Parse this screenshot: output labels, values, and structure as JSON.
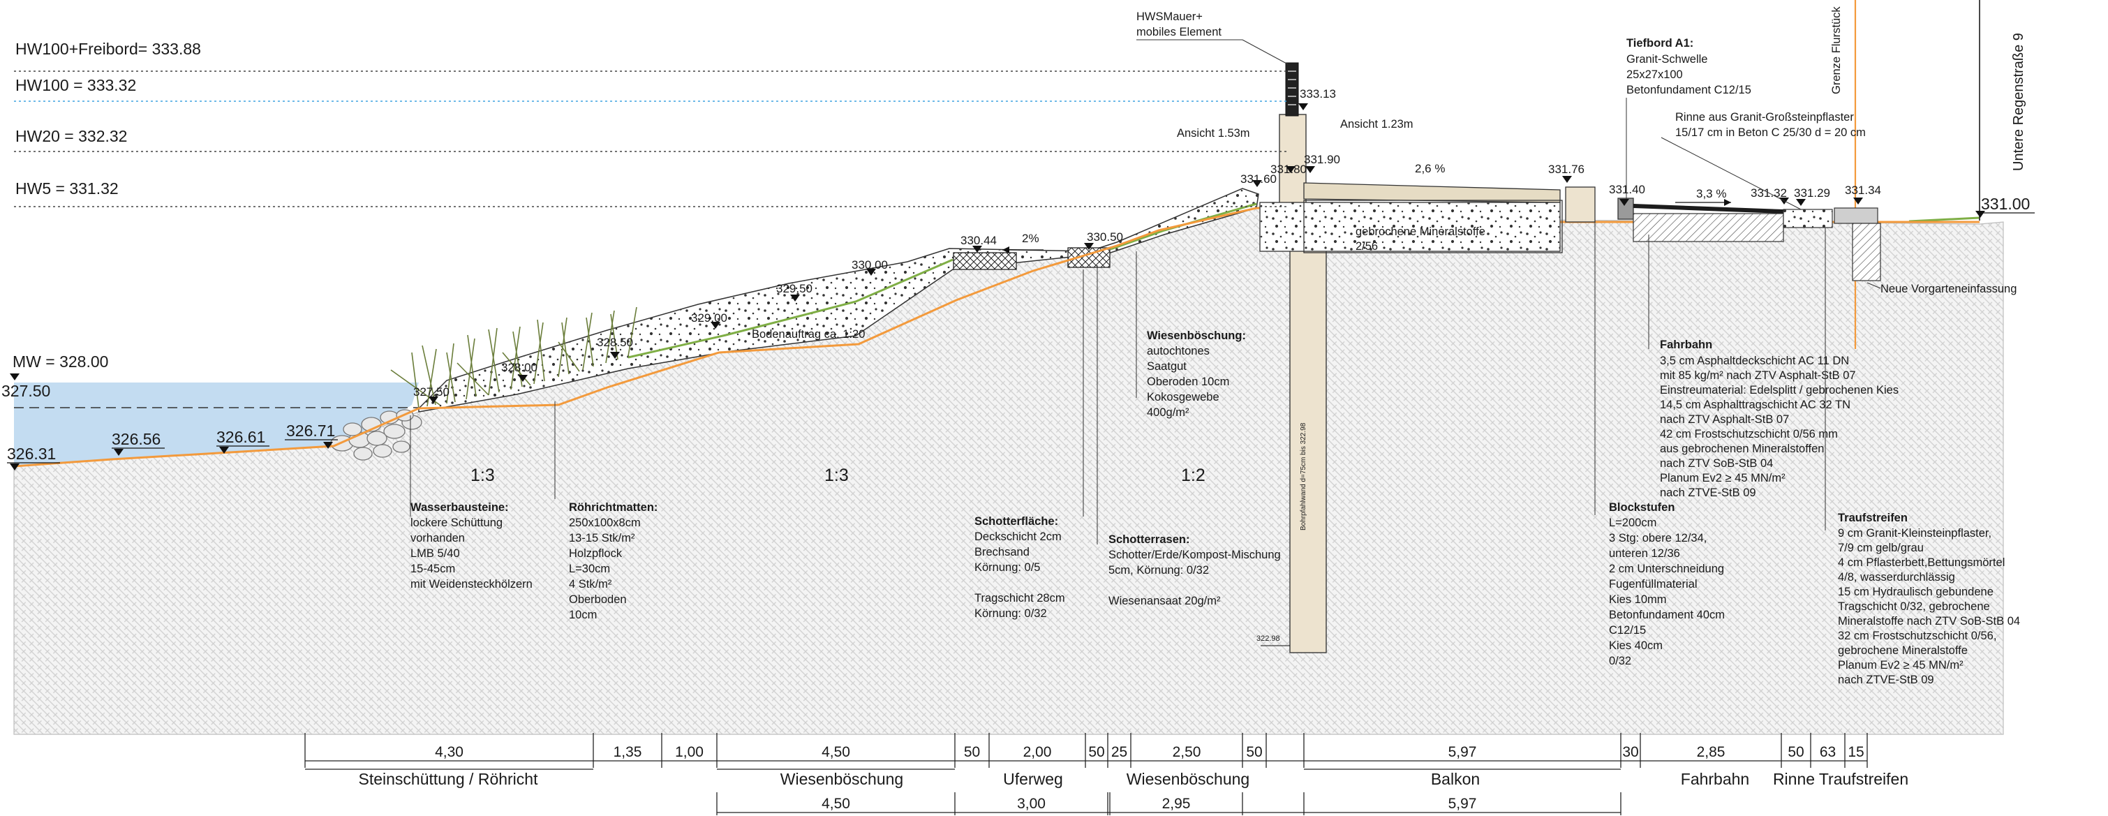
{
  "levels": {
    "hw100_freibord": "HW100+Freibord= 333.88",
    "hw100": "HW100 = 333.32",
    "hw20": "HW20 = 332.32",
    "hw5": "HW5 = 331.32",
    "mw": "MW = 328.00"
  },
  "elevations": {
    "e32750_left": "327.50",
    "e32750": "327.50",
    "e32631": "326.31",
    "e32656": "326.56",
    "e32661": "326.61",
    "e32671": "326.71",
    "e32800": "328.00",
    "e32850": "328.50",
    "e32900": "329.00",
    "e32950": "329.50",
    "e33000": "330.00",
    "e33044": "330.44",
    "e33050": "330.50",
    "e33160": "331.60",
    "e33180": "331.80",
    "e33190": "331.90",
    "e33313": "333.13",
    "e33176": "331.76",
    "e33140": "331.40",
    "e33132": "331.32",
    "e33129": "331.29",
    "e33134": "331.34",
    "e33100": "331.00",
    "e32298": "322.98"
  },
  "slopes": {
    "s1": "1:3",
    "s2": "1:3",
    "s3": "1:2",
    "p2": "2%",
    "p26": "2,6 %",
    "p33": "3,3 %"
  },
  "labels": {
    "hws_line1": "HWSMauer+",
    "hws_line2": "mobiles Element",
    "ansicht_left": "Ansicht 1.53m",
    "ansicht_right": "Ansicht 1.23m",
    "bodenauftrag": "Bodenauftrag ca. 1:20",
    "gebrochene": "gebrochene Mineralstoffe",
    "gebrochene_size": "2/56",
    "pile": "Bohrpfahlwand d=75cm bis 322.98",
    "street": "Untere Regenstraße 9",
    "grenze": "Grenze Flurstück",
    "vorgarten": "Neue Vorgarteneinfassung",
    "tiefbord_title": "Tiefbord A1:",
    "tiefbord_lines": [
      "Granit-Schwelle",
      "25x27x100",
      "Betonfundament C12/15"
    ],
    "rinne_lines": [
      "Rinne aus Granit-Großsteinpflaster",
      "15/17 cm in Beton C 25/30 d = 20 cm"
    ],
    "wasser_title": "Wasserbausteine:",
    "wasser_lines": [
      "lockere Schüttung",
      "vorhanden",
      "LMB 5/40",
      "15-45cm",
      "mit Weidensteckhölzern"
    ],
    "roehricht_title": "Röhrichtmatten:",
    "roehricht_lines": [
      "250x100x8cm",
      "13-15 Stk/m²",
      "Holzpflock",
      "L=30cm",
      "4 Stk/m²",
      "Oberboden",
      "10cm"
    ],
    "wiesenb_title": "Wiesenböschung:",
    "wiesenb_lines": [
      "autochtones",
      "Saatgut",
      "Oberoden 10cm",
      "Kokosgewebe",
      "400g/m²"
    ],
    "schotterfl_title": "Schotterfläche:",
    "schotterfl_lines": [
      "Deckschicht 2cm",
      "Brechsand",
      "Körnung: 0/5",
      "",
      "Tragschicht 28cm",
      "Körnung: 0/32"
    ],
    "schotterr_title": "Schotterrasen:",
    "schotterr_lines": [
      "Schotter/Erde/Kompost-Mischung",
      "5cm, Körnung: 0/32",
      "",
      "Wiesenansaat 20g/m²"
    ],
    "fahrbahn_title": "Fahrbahn",
    "fahrbahn_lines": [
      "3,5 cm Asphaltdeckschicht AC 11 DN",
      "mit 85 kg/m² nach ZTV Asphalt-StB 07",
      "Einstreumaterial: Edelsplitt / gebrochenen Kies",
      "14,5 cm Asphalttragschicht AC 32 TN",
      " nach ZTV Asphalt-StB 07",
      " 42 cm   Frostschutzschicht 0/56 mm",
      "aus gebrochenen Mineralstoffen",
      "nach ZTV SoB-StB 04",
      "Planum Ev2 ≥ 45 MN/m²",
      "nach ZTVE-StB 09"
    ],
    "block_title": "Blockstufen",
    "block_lines": [
      "L=200cm",
      "3 Stg: obere 12/34,",
      "unteren 12/36",
      "2 cm Unterschneidung",
      "Fugenfüllmaterial",
      "Kies 10mm",
      "Betonfundament 40cm",
      "C12/15",
      "Kies 40cm",
      "0/32"
    ],
    "trauf_title": "Traufstreifen",
    "trauf_lines": [
      "9 cm Granit-Kleinsteinpflaster,",
      "7/9 cm gelb/grau",
      "4 cm Pflasterbett,Bettungsmörtel",
      "4/8, wasserdurchlässig",
      "15 cm Hydraulisch gebundene",
      "Tragschicht 0/32, gebrochene",
      "Mineralstoffe nach ZTV SoB-StB 04",
      "32 cm Frostschutzschicht 0/56,",
      "gebrochene Mineralstoffe",
      "Planum Ev2 ≥ 45 MN/m²",
      "nach ZTVE-StB 09"
    ]
  },
  "dims_top": [
    "4,30",
    "1,35",
    "1,00",
    "4,50",
    "50",
    "2,00",
    "50",
    "25",
    "2,50",
    "50",
    "5,97",
    "30",
    "2,85",
    "50",
    "63",
    "15"
  ],
  "sections": [
    "Steinschüttung / Röhricht",
    "Wiesenböschung",
    "Uferweg",
    "Wiesenböschung",
    "Balkon",
    "Fahrbahn",
    "Rinne",
    "Traufstreifen"
  ],
  "dims_bottom": [
    "4,50",
    "3,00",
    "2,95",
    "5,97"
  ],
  "colors": {
    "water": "#c3dcf1",
    "terrain_line": "#f39a3c",
    "hw100_line": "#3fa4e0",
    "grass": "#7fae45",
    "hatch": "#d2d2d2"
  }
}
